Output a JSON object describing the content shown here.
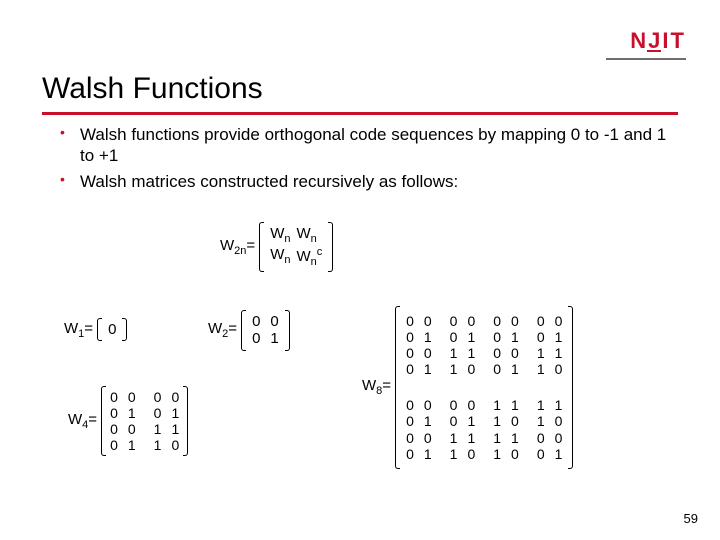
{
  "logo": {
    "text": "NJIT"
  },
  "title": "Walsh Functions",
  "bullets": [
    "Walsh functions provide orthogonal code sequences by mapping 0 to -1 and 1 to +1",
    "Walsh matrices constructed recursively as follows:"
  ],
  "w2n": {
    "label_html": "W<sub>2n</sub>=",
    "rows": [
      [
        "Wn",
        "Wn"
      ],
      [
        "Wn",
        "Wnᶜ"
      ]
    ]
  },
  "w1": {
    "label_html": "W<sub>1</sub>=",
    "rows": [
      [
        "0"
      ]
    ]
  },
  "w2": {
    "label_html": "W<sub>2</sub>=",
    "rows": [
      [
        "0",
        "0"
      ],
      [
        "0",
        "1"
      ]
    ]
  },
  "w4": {
    "label_html": "W<sub>4</sub>=",
    "left": [
      [
        "0",
        "0"
      ],
      [
        "0",
        "1"
      ],
      [
        "0",
        "0"
      ],
      [
        "0",
        "1"
      ]
    ],
    "right": [
      [
        "0",
        "0"
      ],
      [
        "0",
        "1"
      ],
      [
        "1",
        "1"
      ],
      [
        "1",
        "0"
      ]
    ]
  },
  "w8": {
    "label_html": "W<sub>8</sub>=",
    "blocks_top": [
      [
        [
          "0",
          "0"
        ],
        [
          "0",
          "1"
        ],
        [
          "0",
          "0"
        ],
        [
          "0",
          "1"
        ]
      ],
      [
        [
          "0",
          "0"
        ],
        [
          "0",
          "1"
        ],
        [
          "1",
          "1"
        ],
        [
          "1",
          "0"
        ]
      ],
      [
        [
          "0",
          "0"
        ],
        [
          "0",
          "1"
        ],
        [
          "0",
          "0"
        ],
        [
          "0",
          "1"
        ]
      ],
      [
        [
          "0",
          "0"
        ],
        [
          "0",
          "1"
        ],
        [
          "1",
          "1"
        ],
        [
          "1",
          "0"
        ]
      ]
    ],
    "blocks_bot": [
      [
        [
          "0",
          "0"
        ],
        [
          "0",
          "1"
        ],
        [
          "0",
          "0"
        ],
        [
          "0",
          "1"
        ]
      ],
      [
        [
          "0",
          "0"
        ],
        [
          "0",
          "1"
        ],
        [
          "1",
          "1"
        ],
        [
          "1",
          "0"
        ]
      ],
      [
        [
          "1",
          "1"
        ],
        [
          "1",
          "0"
        ],
        [
          "1",
          "1"
        ],
        [
          "1",
          "0"
        ]
      ],
      [
        [
          "1",
          "1"
        ],
        [
          "1",
          "0"
        ],
        [
          "0",
          "0"
        ],
        [
          "0",
          "1"
        ]
      ]
    ]
  },
  "page_number": "59",
  "colors": {
    "accent": "#c8102e"
  }
}
